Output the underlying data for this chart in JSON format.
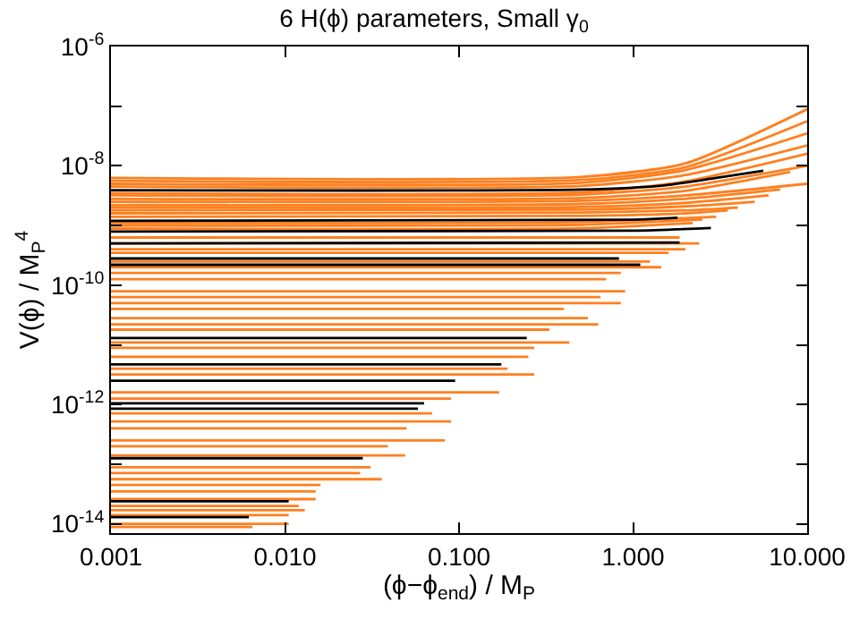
{
  "chart_data": {
    "type": "line",
    "title": "6 H(ϕ) parameters, Small γ$_{0}$",
    "xlabel": "(ϕ−ϕ$_{end}$) / M$_{P}$",
    "ylabel": "V(ϕ) / M$_{P}$$^{4}$",
    "log": "xy",
    "marker": "none",
    "line_style": "solid",
    "xlim": [
      0.001,
      10
    ],
    "xticks": [
      {
        "value": 0.001,
        "label": "0.001"
      },
      {
        "value": 0.01,
        "label": "0.010"
      },
      {
        "value": 0.1,
        "label": "0.100"
      },
      {
        "value": 1,
        "label": "1.000"
      },
      {
        "value": 10,
        "label": "10.000"
      }
    ],
    "ylim": [
      7e-15,
      1e-06
    ],
    "yticks": [
      {
        "value": 1e-14,
        "label": "10$^{-14}$"
      },
      {
        "value": 1e-13,
        "label": null
      },
      {
        "value": 1e-12,
        "label": "10$^{-12}$"
      },
      {
        "value": 1e-11,
        "label": null
      },
      {
        "value": 1e-10,
        "label": "10$^{-10}$"
      },
      {
        "value": 1e-09,
        "label": null
      },
      {
        "value": 1e-08,
        "label": "10$^{-8}$"
      },
      {
        "value": 1e-07,
        "label": null
      },
      {
        "value": 1e-06,
        "label": "10$^{-6}$"
      }
    ],
    "series": [
      {
        "color": "#ff7f1e",
        "x": [
          0.001,
          0.5,
          2,
          10
        ],
        "values": [
          6.3e-09,
          6.5e-09,
          1.1e-08,
          8.9e-08
        ]
      },
      {
        "color": "#ff7f1e",
        "x": [
          0.001,
          0.5,
          2,
          10
        ],
        "values": [
          5.6e-09,
          5.8e-09,
          9.5e-09,
          5.6e-08
        ]
      },
      {
        "color": "#ff7f1e",
        "x": [
          0.001,
          0.5,
          2,
          10
        ],
        "values": [
          5e-09,
          5.2e-09,
          8.5e-09,
          3.5e-08
        ]
      },
      {
        "color": "#ff7f1e",
        "x": [
          0.001,
          0.5,
          2,
          10
        ],
        "values": [
          4.5e-09,
          4.6e-09,
          7e-09,
          2.2e-08
        ]
      },
      {
        "color": "#ff7f1e",
        "x": [
          0.001,
          0.5,
          2,
          10
        ],
        "values": [
          3.5e-09,
          3.6e-09,
          5.5e-09,
          1.6e-08
        ]
      },
      {
        "color": "#ff7f1e",
        "x": [
          0.001,
          0.5,
          2,
          10
        ],
        "values": [
          3.2e-09,
          3.3e-09,
          4.5e-09,
          1e-08
        ]
      },
      {
        "color": "#ff7f1e",
        "x": [
          0.001,
          0.5,
          2,
          8
        ],
        "values": [
          2.8e-09,
          2.9e-09,
          3.8e-09,
          7.9e-09
        ]
      },
      {
        "color": "#ff7f1e",
        "x": [
          0.001,
          0.5,
          2,
          10
        ],
        "values": [
          2.5e-09,
          2.6e-09,
          3.2e-09,
          5e-09
        ]
      },
      {
        "color": "#ff7f1e",
        "x": [
          0.001,
          0.5,
          2,
          7
        ],
        "values": [
          2.2e-09,
          2.3e-09,
          2.8e-09,
          4e-09
        ]
      },
      {
        "color": "#ff7f1e",
        "x": [
          0.001,
          0.5,
          2,
          6
        ],
        "values": [
          2e-09,
          2.05e-09,
          2.4e-09,
          3.2e-09
        ]
      },
      {
        "color": "#ff7f1e",
        "x": [
          0.001,
          0.5,
          2,
          5
        ],
        "values": [
          1.8e-09,
          1.85e-09,
          2.1e-09,
          2.5e-09
        ]
      },
      {
        "color": "#ff7f1e",
        "x": [
          0.001,
          0.5,
          2,
          4
        ],
        "values": [
          1.6e-09,
          1.65e-09,
          1.8e-09,
          2e-09
        ]
      },
      {
        "color": "#ff7f1e",
        "x": [
          0.001,
          0.5,
          2,
          3.5
        ],
        "values": [
          1.4e-09,
          1.45e-09,
          1.6e-09,
          1.8e-09
        ]
      },
      {
        "color": "#ff7f1e",
        "x": [
          0.001,
          0.5,
          3
        ],
        "values": [
          1.1e-09,
          1.15e-09,
          1.4e-09
        ]
      },
      {
        "color": "#ff7f1e",
        "x": [
          0.001,
          0.5,
          2.5
        ],
        "values": [
          1e-09,
          1.03e-09,
          1.26e-09
        ]
      },
      {
        "color": "#ff7f1e",
        "x": [
          0.001,
          0.5,
          2.2
        ],
        "values": [
          8.9e-10,
          9e-10,
          1.1e-09
        ]
      },
      {
        "color": "#ff7f1e",
        "x": [
          0.001,
          1.85
        ],
        "values": [
          6.3e-10,
          6.3e-10
        ]
      },
      {
        "color": "#ff7f1e",
        "x": [
          0.001,
          2.4
        ],
        "values": [
          5e-10,
          5e-10
        ]
      },
      {
        "color": "#ff7f1e",
        "x": [
          0.001,
          2.0
        ],
        "values": [
          4e-10,
          4e-10
        ]
      },
      {
        "color": "#ff7f1e",
        "x": [
          0.001,
          1.6
        ],
        "values": [
          3.5e-10,
          3.5e-10
        ]
      },
      {
        "color": "#ff7f1e",
        "x": [
          0.001,
          1.25
        ],
        "values": [
          2.5e-10,
          2.5e-10
        ]
      },
      {
        "color": "#ff7f1e",
        "x": [
          0.001,
          1.45
        ],
        "values": [
          2e-10,
          2e-10
        ]
      },
      {
        "color": "#ff7f1e",
        "x": [
          0.001,
          0.85
        ],
        "values": [
          1.6e-10,
          1.6e-10
        ]
      },
      {
        "color": "#ff7f1e",
        "x": [
          0.001,
          0.7
        ],
        "values": [
          1.26e-10,
          1.26e-10
        ]
      },
      {
        "color": "#ff7f1e",
        "x": [
          0.001,
          0.9
        ],
        "values": [
          7.9e-11,
          7.9e-11
        ]
      },
      {
        "color": "#ff7f1e",
        "x": [
          0.001,
          0.65
        ],
        "values": [
          6.3e-11,
          6.3e-11
        ]
      },
      {
        "color": "#ff7f1e",
        "x": [
          0.001,
          0.85
        ],
        "values": [
          5e-11,
          5e-11
        ]
      },
      {
        "color": "#ff7f1e",
        "x": [
          0.001,
          0.4
        ],
        "values": [
          4e-11,
          4e-11
        ]
      },
      {
        "color": "#ff7f1e",
        "x": [
          0.001,
          0.55
        ],
        "values": [
          2.8e-11,
          2.8e-11
        ]
      },
      {
        "color": "#ff7f1e",
        "x": [
          0.001,
          0.63
        ],
        "values": [
          2.2e-11,
          2.2e-11
        ]
      },
      {
        "color": "#ff7f1e",
        "x": [
          0.001,
          0.33
        ],
        "values": [
          1.8e-11,
          1.8e-11
        ]
      },
      {
        "color": "#ff7f1e",
        "x": [
          0.001,
          0.43
        ],
        "values": [
          1.1e-11,
          1.1e-11
        ]
      },
      {
        "color": "#ff7f1e",
        "x": [
          0.001,
          0.27
        ],
        "values": [
          8.9e-12,
          8.9e-12
        ]
      },
      {
        "color": "#ff7f1e",
        "x": [
          0.001,
          0.25
        ],
        "values": [
          6.3e-12,
          6.3e-12
        ]
      },
      {
        "color": "#ff7f1e",
        "x": [
          0.001,
          0.19
        ],
        "values": [
          4e-12,
          4e-12
        ]
      },
      {
        "color": "#ff7f1e",
        "x": [
          0.001,
          0.27
        ],
        "values": [
          3.2e-12,
          3.2e-12
        ]
      },
      {
        "color": "#ff7f1e",
        "x": [
          0.001,
          0.17
        ],
        "values": [
          1.6e-12,
          1.6e-12
        ]
      },
      {
        "color": "#ff7f1e",
        "x": [
          0.001,
          0.09
        ],
        "values": [
          1.26e-12,
          1.26e-12
        ]
      },
      {
        "color": "#ff7f1e",
        "x": [
          0.001,
          0.07
        ],
        "values": [
          7.1e-13,
          7.1e-13
        ]
      },
      {
        "color": "#ff7f1e",
        "x": [
          0.001,
          0.09
        ],
        "values": [
          5.2e-13,
          5.2e-13
        ]
      },
      {
        "color": "#ff7f1e",
        "x": [
          0.001,
          0.05
        ],
        "values": [
          4e-13,
          4e-13
        ]
      },
      {
        "color": "#ff7f1e",
        "x": [
          0.001,
          0.083
        ],
        "values": [
          2.5e-13,
          2.5e-13
        ]
      },
      {
        "color": "#ff7f1e",
        "x": [
          0.001,
          0.039
        ],
        "values": [
          2e-13,
          2e-13
        ]
      },
      {
        "color": "#ff7f1e",
        "x": [
          0.001,
          0.049
        ],
        "values": [
          1.4e-13,
          1.4e-13
        ]
      },
      {
        "color": "#ff7f1e",
        "x": [
          0.001,
          0.031
        ],
        "values": [
          8.9e-14,
          8.9e-14
        ]
      },
      {
        "color": "#ff7f1e",
        "x": [
          0.001,
          0.027
        ],
        "values": [
          7.1e-14,
          7.1e-14
        ]
      },
      {
        "color": "#ff7f1e",
        "x": [
          0.001,
          0.036
        ],
        "values": [
          5.6e-14,
          5.6e-14
        ]
      },
      {
        "color": "#ff7f1e",
        "x": [
          0.001,
          0.016
        ],
        "values": [
          4.5e-14,
          4.5e-14
        ]
      },
      {
        "color": "#ff7f1e",
        "x": [
          0.001,
          0.015
        ],
        "values": [
          3.5e-14,
          3.5e-14
        ]
      },
      {
        "color": "#ff7f1e",
        "x": [
          0.001,
          0.015
        ],
        "values": [
          2.6e-14,
          2.6e-14
        ]
      },
      {
        "color": "#ff7f1e",
        "x": [
          0.001,
          0.012
        ],
        "values": [
          2e-14,
          2e-14
        ]
      },
      {
        "color": "#ff7f1e",
        "x": [
          0.001,
          0.013
        ],
        "values": [
          1.7e-14,
          1.7e-14
        ]
      },
      {
        "color": "#ff7f1e",
        "x": [
          0.001,
          0.0105
        ],
        "values": [
          1.4e-14,
          1.4e-14
        ]
      },
      {
        "color": "#ff7f1e",
        "x": [
          0.001,
          0.0105
        ],
        "values": [
          1e-14,
          1e-14
        ]
      },
      {
        "color": "#ff7f1e",
        "x": [
          0.001,
          0.0065
        ],
        "values": [
          8.9e-15,
          8.9e-15
        ]
      },
      {
        "color": "#000000",
        "x": [
          0.001,
          0.5,
          1.5,
          3,
          5.6
        ],
        "values": [
          3.9e-09,
          4e-09,
          4.7e-09,
          6.3e-09,
          8.3e-09
        ]
      },
      {
        "color": "#000000",
        "x": [
          0.001,
          1,
          1.8
        ],
        "values": [
          1.2e-09,
          1.25e-09,
          1.35e-09
        ]
      },
      {
        "color": "#000000",
        "x": [
          0.001,
          1,
          2.8
        ],
        "values": [
          7.9e-10,
          8.2e-10,
          9.1e-10
        ]
      },
      {
        "color": "#000000",
        "x": [
          0.001,
          1.85
        ],
        "values": [
          5e-10,
          5.2e-10
        ]
      },
      {
        "color": "#000000",
        "x": [
          0.001,
          0.83
        ],
        "values": [
          2.8e-10,
          2.8e-10
        ]
      },
      {
        "color": "#000000",
        "x": [
          0.001,
          1.1
        ],
        "values": [
          2.2e-10,
          2.2e-10
        ]
      },
      {
        "color": "#000000",
        "x": [
          0.001,
          0.245
        ],
        "values": [
          1.3e-11,
          1.3e-11
        ]
      },
      {
        "color": "#000000",
        "x": [
          0.001,
          0.175
        ],
        "values": [
          4.7e-12,
          4.7e-12
        ]
      },
      {
        "color": "#000000",
        "x": [
          0.001,
          0.095
        ],
        "values": [
          2.5e-12,
          2.5e-12
        ]
      },
      {
        "color": "#000000",
        "x": [
          0.001,
          0.063
        ],
        "values": [
          1.05e-12,
          1.05e-12
        ]
      },
      {
        "color": "#000000",
        "x": [
          0.001,
          0.058
        ],
        "values": [
          8.5e-13,
          8.5e-13
        ]
      },
      {
        "color": "#000000",
        "x": [
          0.001,
          0.028
        ],
        "values": [
          1.26e-13,
          1.26e-13
        ]
      },
      {
        "color": "#000000",
        "x": [
          0.001,
          0.0105
        ],
        "values": [
          2.4e-14,
          2.4e-14
        ]
      },
      {
        "color": "#000000",
        "x": [
          0.001,
          0.0062
        ],
        "values": [
          1.3e-14,
          1.3e-14
        ]
      }
    ]
  }
}
